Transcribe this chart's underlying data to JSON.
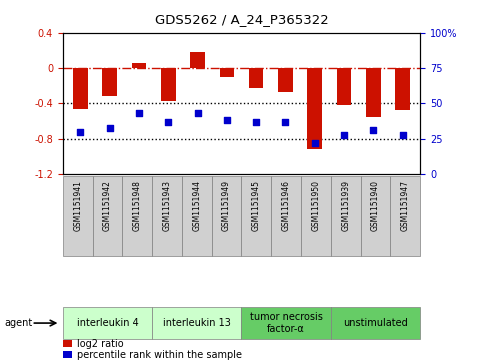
{
  "title": "GDS5262 / A_24_P365322",
  "samples": [
    "GSM1151941",
    "GSM1151942",
    "GSM1151948",
    "GSM1151943",
    "GSM1151944",
    "GSM1151949",
    "GSM1151945",
    "GSM1151946",
    "GSM1151950",
    "GSM1151939",
    "GSM1151940",
    "GSM1151947"
  ],
  "log2_ratio": [
    -0.46,
    -0.32,
    0.06,
    -0.37,
    0.18,
    -0.1,
    -0.22,
    -0.27,
    -0.92,
    -0.42,
    -0.55,
    -0.47
  ],
  "percentile": [
    30,
    33,
    43,
    37,
    43,
    38,
    37,
    37,
    22,
    28,
    31,
    28
  ],
  "agents": [
    {
      "label": "interleukin 4",
      "start": 0,
      "end": 3,
      "color": "#ccffcc"
    },
    {
      "label": "interleukin 13",
      "start": 3,
      "end": 6,
      "color": "#ccffcc"
    },
    {
      "label": "tumor necrosis\nfactor-α",
      "start": 6,
      "end": 9,
      "color": "#66cc66"
    },
    {
      "label": "unstimulated",
      "start": 9,
      "end": 12,
      "color": "#66cc66"
    }
  ],
  "ylim_left": [
    -1.2,
    0.4
  ],
  "ylim_right": [
    0,
    100
  ],
  "bar_color": "#cc1100",
  "dot_color": "#0000cc",
  "hline_color": "#cc1100",
  "dotted_color": "#000000",
  "sample_box_color": "#d0d0d0",
  "agent_colors_light": "#ccffcc",
  "agent_colors_dark": "#66cc66"
}
